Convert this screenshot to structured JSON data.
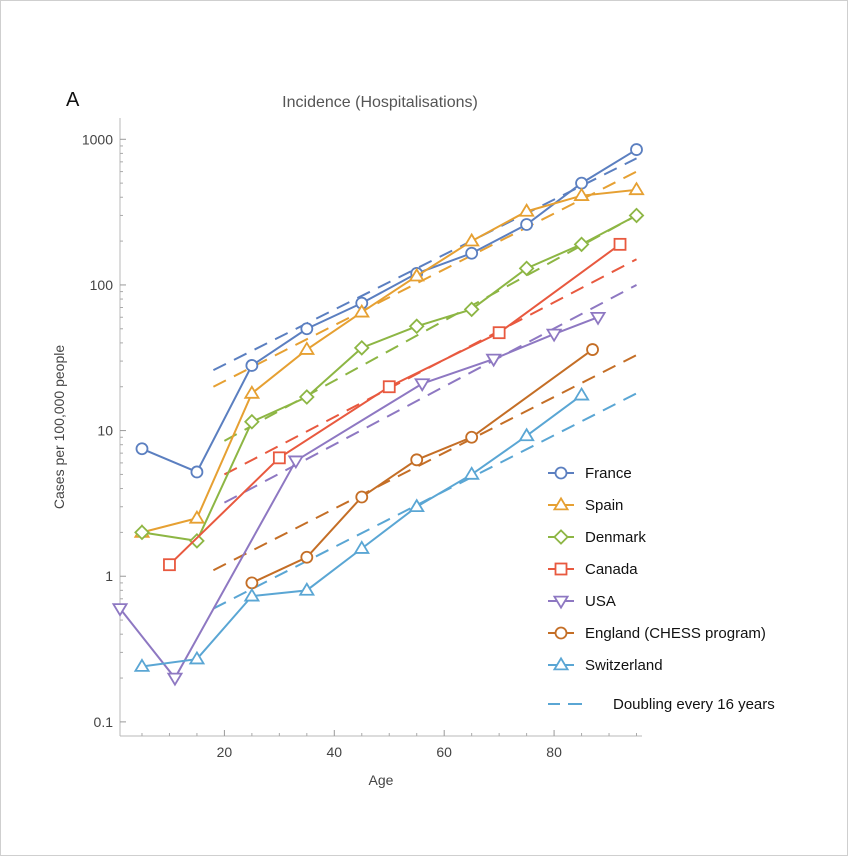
{
  "chart_data": {
    "type": "line",
    "panel_label": "A",
    "title": "Incidence (Hospitalisations)",
    "xlabel": "Age",
    "ylabel": "Cases per 100,000 people",
    "xlim": [
      1,
      96
    ],
    "ylim": [
      0.08,
      1400
    ],
    "yscale": "log",
    "x_ticks": [
      20,
      40,
      60,
      80
    ],
    "y_ticks": [
      {
        "value": 0.1,
        "label": "0.1"
      },
      {
        "value": 1,
        "label": "1"
      },
      {
        "value": 10,
        "label": "10"
      },
      {
        "value": 100,
        "label": "100"
      },
      {
        "value": 1000,
        "label": "1000"
      }
    ],
    "legend_position": "bottom-right",
    "series": [
      {
        "name": "France",
        "color": "#5b7fc0",
        "marker": "circle",
        "x": [
          5,
          15,
          25,
          35,
          45,
          55,
          65,
          75,
          85,
          95
        ],
        "y": [
          7.5,
          5.2,
          28,
          50,
          75,
          120,
          165,
          260,
          500,
          850
        ]
      },
      {
        "name": "Spain",
        "color": "#e6a032",
        "marker": "triangle-up",
        "x": [
          5,
          15,
          25,
          35,
          45,
          55,
          65,
          75,
          85,
          95
        ],
        "y": [
          2.0,
          2.5,
          18,
          36,
          65,
          115,
          200,
          320,
          410,
          450
        ]
      },
      {
        "name": "Denmark",
        "color": "#8db644",
        "marker": "diamond",
        "x": [
          5,
          15,
          25,
          35,
          45,
          55,
          65,
          75,
          85,
          95
        ],
        "y": [
          2.0,
          1.75,
          11.5,
          17,
          37,
          52,
          68,
          130,
          190,
          300
        ]
      },
      {
        "name": "Canada",
        "color": "#e8593f",
        "marker": "square",
        "x": [
          10,
          30,
          50,
          70,
          92
        ],
        "y": [
          1.2,
          6.5,
          20,
          47,
          190
        ]
      },
      {
        "name": "USA",
        "color": "#8e78c2",
        "marker": "triangle-down",
        "x": [
          1,
          11,
          33,
          56,
          69,
          80,
          88
        ],
        "y": [
          0.6,
          0.2,
          6.2,
          21,
          31,
          46,
          60
        ]
      },
      {
        "name": "England (CHESS program)",
        "color": "#c46e26",
        "marker": "circle",
        "x": [
          25,
          35,
          45,
          55,
          65,
          87
        ],
        "y": [
          0.9,
          1.35,
          3.5,
          6.3,
          9,
          36
        ]
      },
      {
        "name": "Switzerland",
        "color": "#5aa6d4",
        "marker": "triangle-up",
        "x": [
          5,
          15,
          25,
          35,
          45,
          55,
          65,
          75,
          85
        ],
        "y": [
          0.24,
          0.27,
          0.73,
          0.8,
          1.55,
          3.0,
          5.0,
          9.2,
          17.5
        ]
      }
    ],
    "reference_lines": [
      {
        "name": "Doubling every 16 years",
        "style": "dashed",
        "fits": [
          {
            "color": "#5b7fc0",
            "x": [
              18,
              95
            ],
            "y": [
              26,
              740
            ]
          },
          {
            "color": "#e6a032",
            "x": [
              18,
              95
            ],
            "y": [
              20,
              600
            ]
          },
          {
            "color": "#8db644",
            "x": [
              20,
              95
            ],
            "y": [
              8.5,
              300
            ]
          },
          {
            "color": "#e8593f",
            "x": [
              20,
              95
            ],
            "y": [
              5,
              150
            ]
          },
          {
            "color": "#8e78c2",
            "x": [
              20,
              95
            ],
            "y": [
              3.2,
              100
            ]
          },
          {
            "color": "#c46e26",
            "x": [
              18,
              95
            ],
            "y": [
              1.1,
              33
            ]
          },
          {
            "color": "#5aa6d4",
            "x": [
              18,
              95
            ],
            "y": [
              0.6,
              18
            ]
          }
        ]
      }
    ]
  }
}
